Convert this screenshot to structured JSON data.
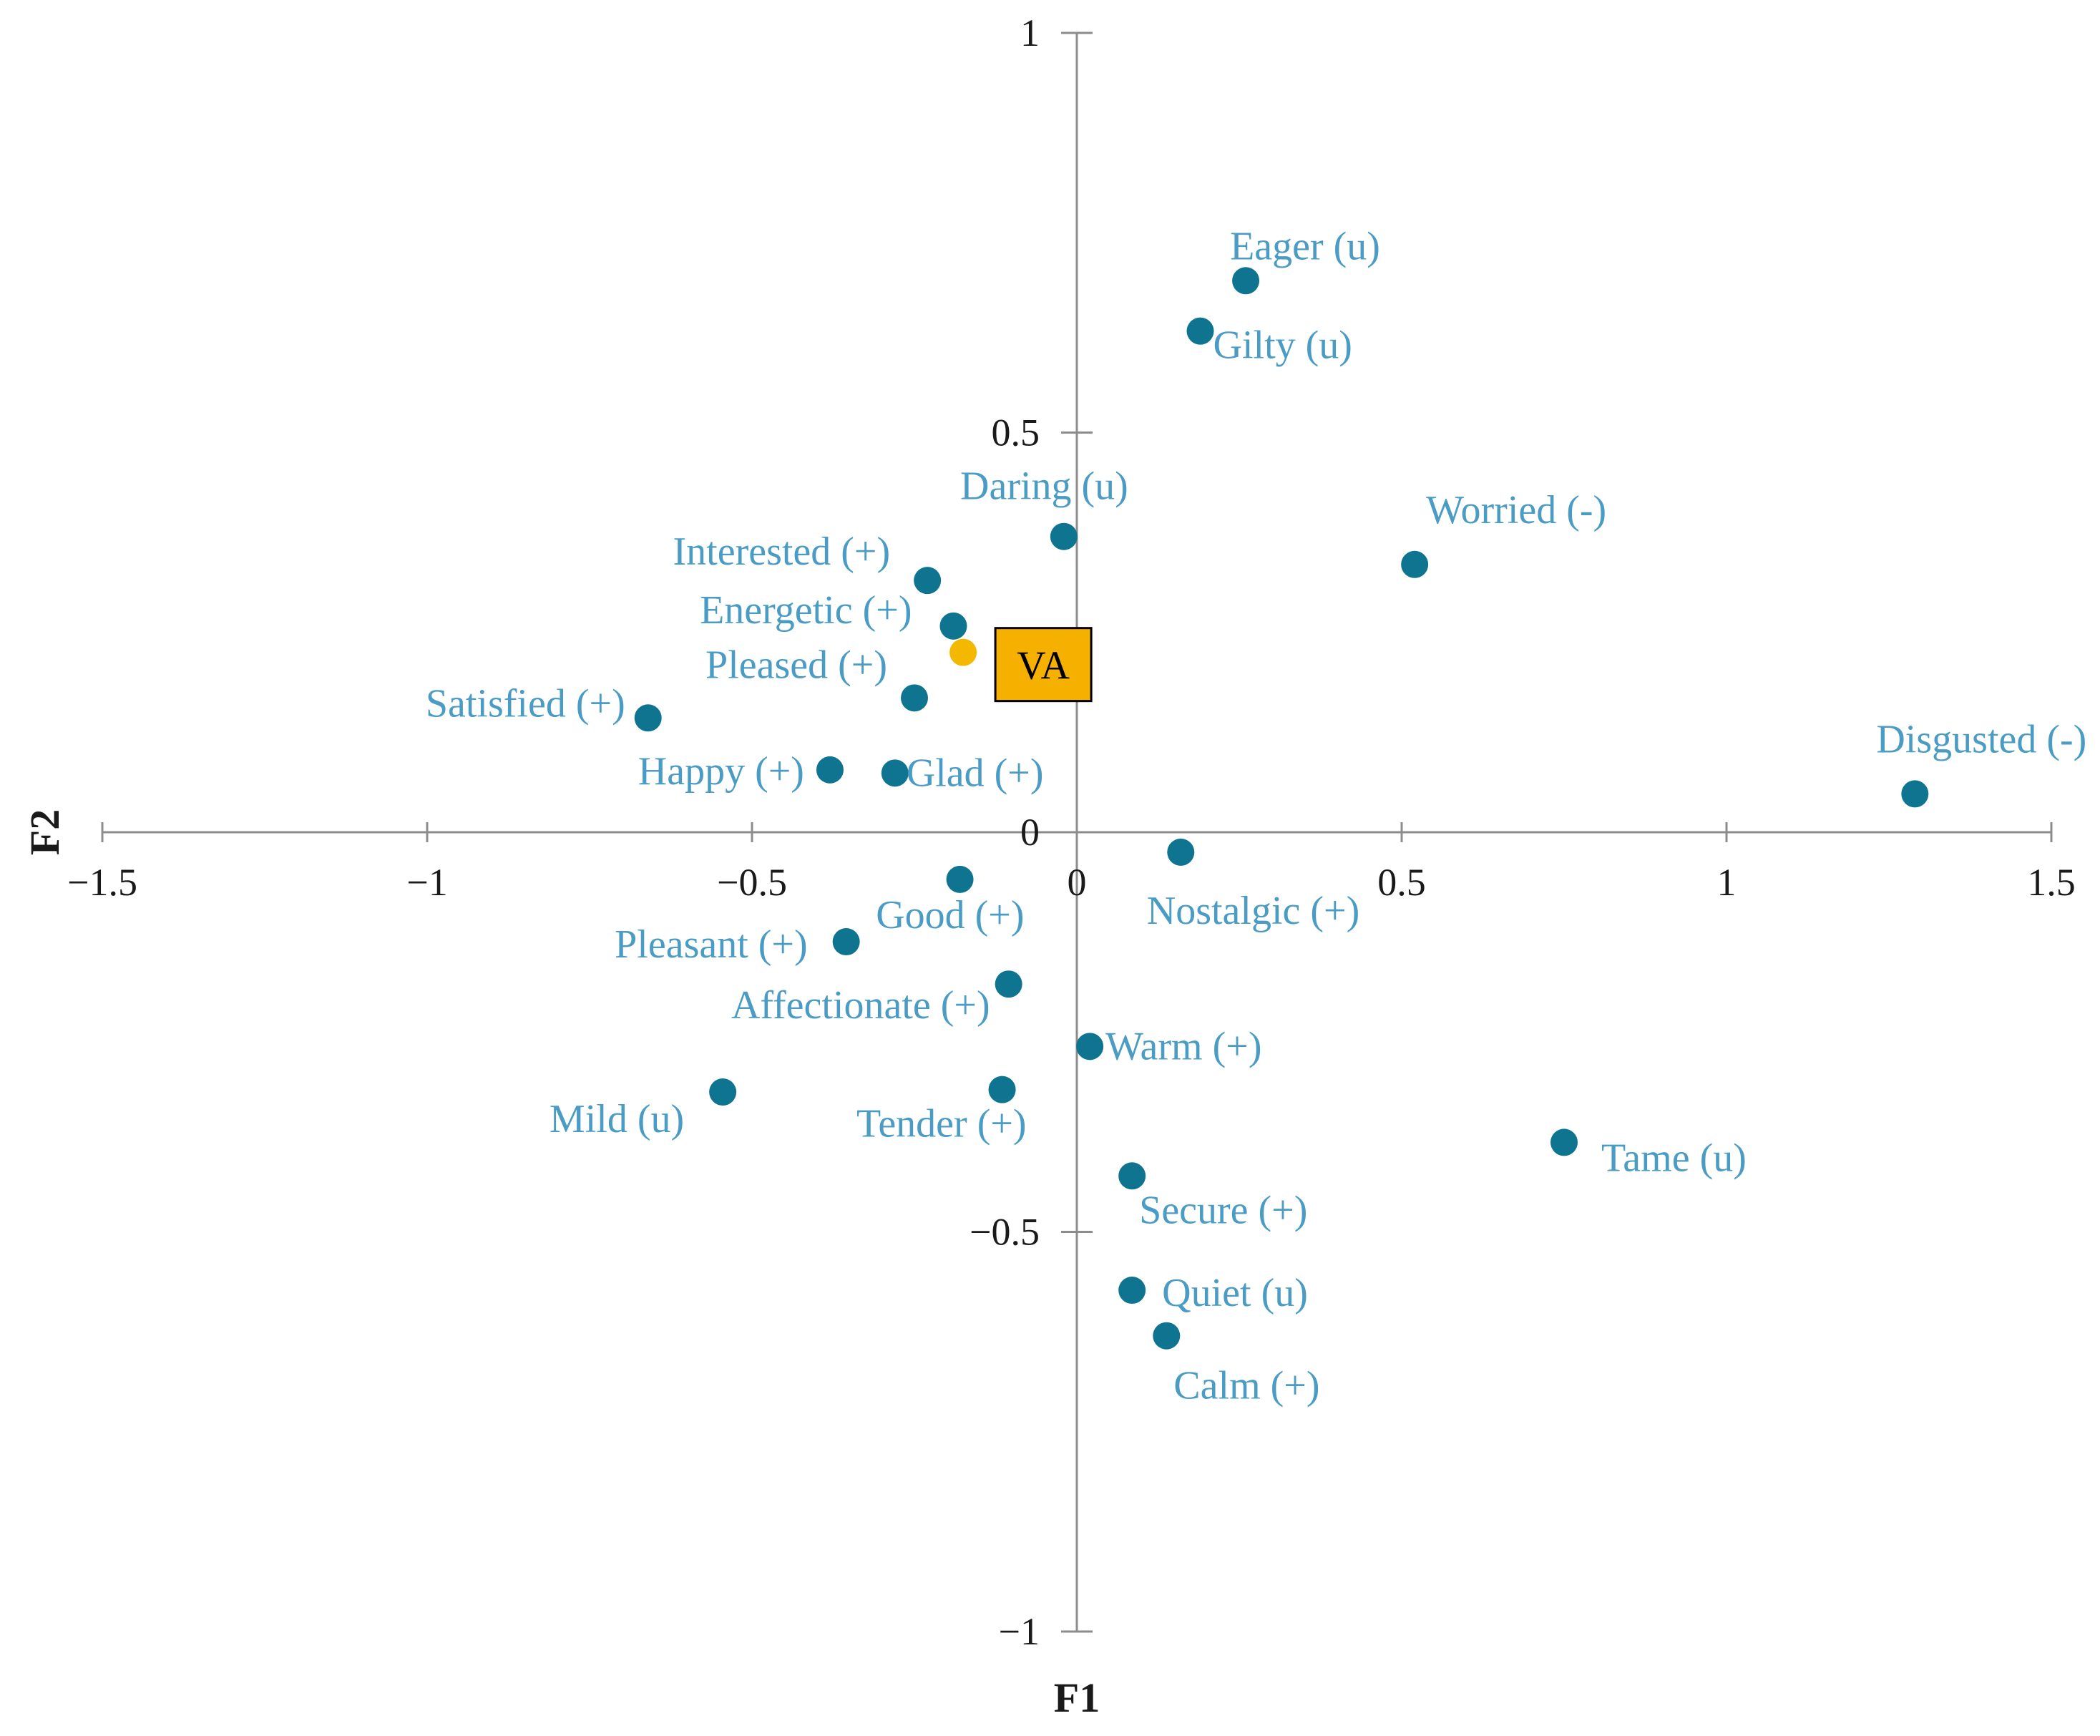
{
  "chart_data": {
    "type": "scatter",
    "title": "",
    "xlabel": "F1",
    "ylabel": "F2",
    "xlim": [
      -1.5,
      1.5
    ],
    "ylim": [
      -1,
      1
    ],
    "x_ticks": [
      {
        "value": -1.5,
        "label": "−1.5"
      },
      {
        "value": -1,
        "label": "−1"
      },
      {
        "value": -0.5,
        "label": "−0.5"
      },
      {
        "value": 0,
        "label": "0"
      },
      {
        "value": 0.5,
        "label": "0.5"
      },
      {
        "value": 1,
        "label": "1"
      },
      {
        "value": 1.5,
        "label": "1.5"
      }
    ],
    "y_ticks": [
      {
        "value": -1,
        "label": "−1"
      },
      {
        "value": -0.5,
        "label": "−0.5"
      },
      {
        "value": 0,
        "label": "0"
      },
      {
        "value": 0.5,
        "label": "0.5"
      },
      {
        "value": 1,
        "label": "1"
      }
    ],
    "grid": false,
    "colors": {
      "point": "#0e7490",
      "label": "#4a9cc4",
      "highlight_point": "#f5b800",
      "highlight_box": "#f5b000",
      "axis": "#8c8c8c"
    },
    "points": [
      {
        "name": "Eager (u)",
        "x": 0.26,
        "y": 0.69,
        "label_pos": "above-right"
      },
      {
        "name": "Gilty (u)",
        "x": 0.19,
        "y": 0.627,
        "label_pos": "right-below"
      },
      {
        "name": "Daring (u)",
        "x": -0.02,
        "y": 0.37,
        "label_pos": "above-left"
      },
      {
        "name": "Worried (-)",
        "x": 0.52,
        "y": 0.335,
        "label_pos": "above-right"
      },
      {
        "name": "Interested (+)",
        "x": -0.23,
        "y": 0.315,
        "label_pos": "above-left"
      },
      {
        "name": "Energetic (+)",
        "x": -0.19,
        "y": 0.258,
        "label_pos": "left-up"
      },
      {
        "name": "Pleased (+)",
        "x": -0.25,
        "y": 0.168,
        "label_pos": "left-up"
      },
      {
        "name": "Satisfied (+)",
        "x": -0.66,
        "y": 0.143,
        "label_pos": "left-up"
      },
      {
        "name": "Happy (+)",
        "x": -0.38,
        "y": 0.078,
        "label_pos": "left"
      },
      {
        "name": "Glad (+)",
        "x": -0.28,
        "y": 0.074,
        "label_pos": "right"
      },
      {
        "name": "Disgusted (-)",
        "x": 1.29,
        "y": 0.048,
        "label_pos": "above-left"
      },
      {
        "name": "Nostalgic (+)",
        "x": 0.16,
        "y": -0.025,
        "label_pos": "below-left"
      },
      {
        "name": "Good (+)",
        "x": -0.18,
        "y": -0.059,
        "label_pos": "below"
      },
      {
        "name": "Pleasant (+)",
        "x": -0.355,
        "y": -0.137,
        "label_pos": "left"
      },
      {
        "name": "Affectionate (+)",
        "x": -0.105,
        "y": -0.19,
        "label_pos": "below-left"
      },
      {
        "name": "Warm (+)",
        "x": 0.02,
        "y": -0.268,
        "label_pos": "right"
      },
      {
        "name": "Mild (u)",
        "x": -0.545,
        "y": -0.325,
        "label_pos": "below-left"
      },
      {
        "name": "Tender (+)",
        "x": -0.115,
        "y": -0.322,
        "label_pos": "below-left"
      },
      {
        "name": "Tame (u)",
        "x": 0.75,
        "y": -0.388,
        "label_pos": "right-below"
      },
      {
        "name": "Secure (+)",
        "x": 0.085,
        "y": -0.43,
        "label_pos": "below-right"
      },
      {
        "name": "Quiet (u)",
        "x": 0.085,
        "y": -0.573,
        "label_pos": "right"
      },
      {
        "name": "Calm (+)",
        "x": 0.138,
        "y": -0.63,
        "label_pos": "below-right"
      }
    ],
    "highlight": {
      "name": "VA",
      "x": -0.175,
      "y": 0.225
    }
  }
}
